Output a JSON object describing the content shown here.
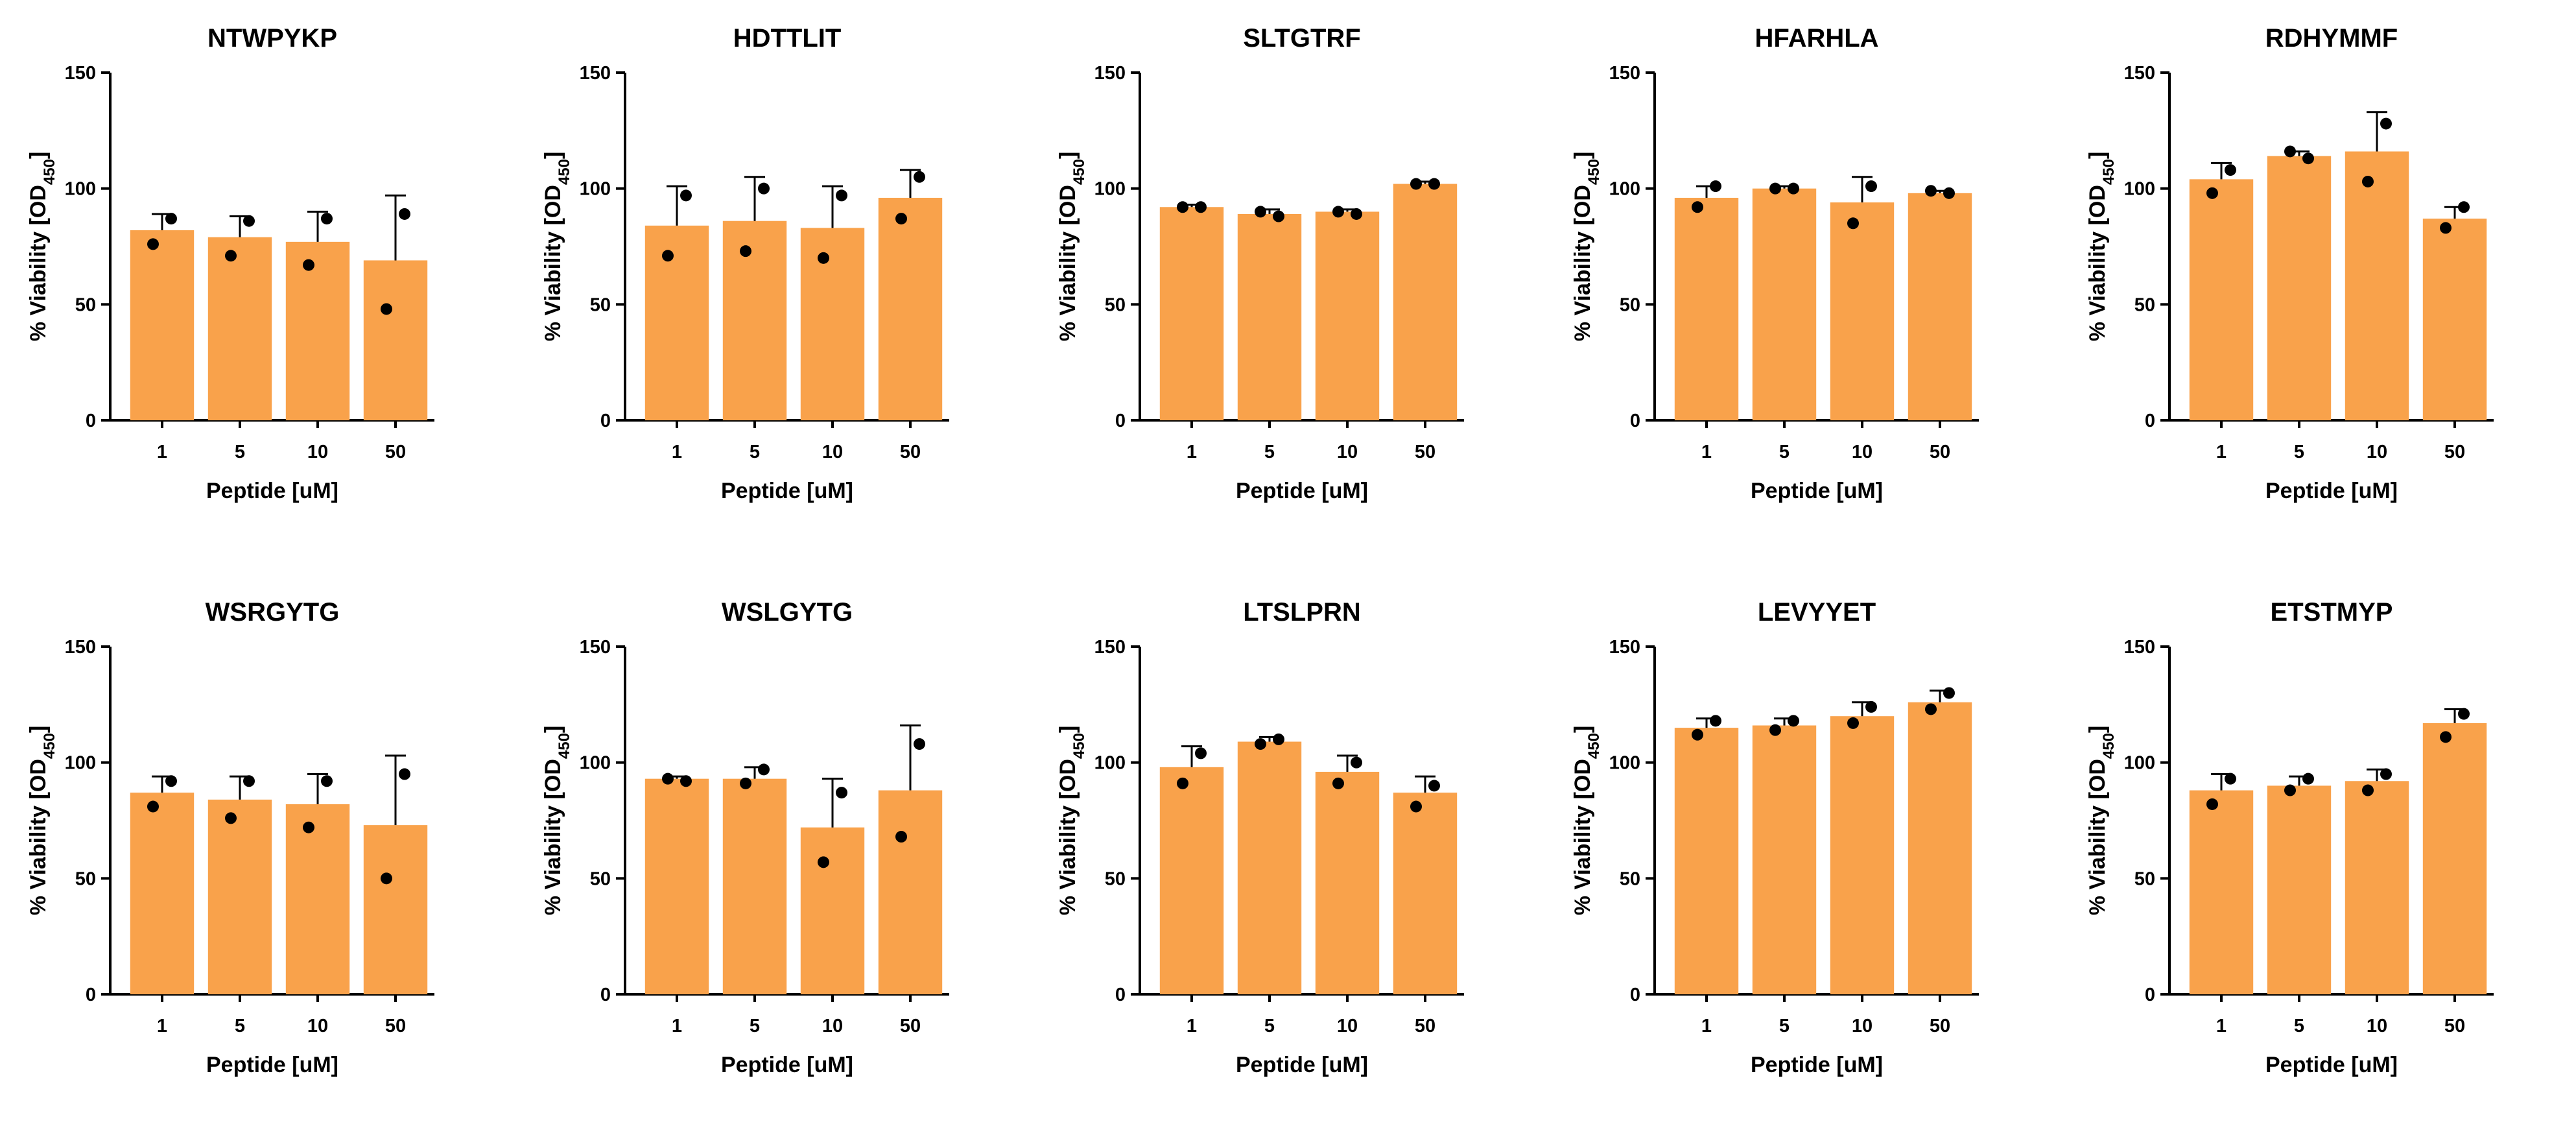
{
  "bar_color": "#F9A24B",
  "point_color": "#000000",
  "chart_data": [
    {
      "type": "bar",
      "title": "NTWPYKP",
      "xlabel": "Peptide [uM]",
      "ylabel_main": "% Viability [OD",
      "ylabel_sub": "450",
      "ylabel_end": "]",
      "ylim": [
        0,
        150
      ],
      "yticks": [
        "0",
        "50",
        "100",
        "150"
      ],
      "categories": [
        "1",
        "5",
        "10",
        "50"
      ],
      "values": [
        82,
        79,
        77,
        69
      ],
      "errors": [
        7,
        9,
        13,
        28
      ],
      "points": [
        [
          87,
          76
        ],
        [
          86,
          71
        ],
        [
          87,
          67
        ],
        [
          89,
          48
        ]
      ]
    },
    {
      "type": "bar",
      "title": "HDTTLIT",
      "xlabel": "Peptide [uM]",
      "ylabel_main": "% Viability [OD",
      "ylabel_sub": "450",
      "ylabel_end": "]",
      "ylim": [
        0,
        150
      ],
      "yticks": [
        "0",
        "50",
        "100",
        "150"
      ],
      "categories": [
        "1",
        "5",
        "10",
        "50"
      ],
      "values": [
        84,
        86,
        83,
        96
      ],
      "errors": [
        17,
        19,
        18,
        12
      ],
      "points": [
        [
          97,
          71
        ],
        [
          100,
          73
        ],
        [
          97,
          70
        ],
        [
          105,
          87
        ]
      ]
    },
    {
      "type": "bar",
      "title": "SLTGTRF",
      "xlabel": "Peptide [uM]",
      "ylabel_main": "% Viability [OD",
      "ylabel_sub": "450",
      "ylabel_end": "]",
      "ylim": [
        0,
        150
      ],
      "yticks": [
        "0",
        "50",
        "100",
        "150"
      ],
      "categories": [
        "1",
        "5",
        "10",
        "50"
      ],
      "values": [
        92,
        89,
        90,
        102
      ],
      "errors": [
        1,
        2,
        1,
        1
      ],
      "points": [
        [
          92,
          92
        ],
        [
          88,
          90
        ],
        [
          89,
          90
        ],
        [
          102,
          102
        ]
      ]
    },
    {
      "type": "bar",
      "title": "HFARHLA",
      "xlabel": "Peptide [uM]",
      "ylabel_main": "% Viability [OD",
      "ylabel_sub": "450",
      "ylabel_end": "]",
      "ylim": [
        0,
        150
      ],
      "yticks": [
        "0",
        "50",
        "100",
        "150"
      ],
      "categories": [
        "1",
        "5",
        "10",
        "50"
      ],
      "values": [
        96,
        100,
        94,
        98
      ],
      "errors": [
        5,
        1,
        11,
        1
      ],
      "points": [
        [
          101,
          92
        ],
        [
          100,
          100
        ],
        [
          101,
          85
        ],
        [
          98,
          99
        ]
      ]
    },
    {
      "type": "bar",
      "title": "RDHYMMF",
      "xlabel": "Peptide [uM]",
      "ylabel_main": "% Viability [OD",
      "ylabel_sub": "450",
      "ylabel_end": "]",
      "ylim": [
        0,
        150
      ],
      "yticks": [
        "0",
        "50",
        "100",
        "150"
      ],
      "categories": [
        "1",
        "5",
        "10",
        "50"
      ],
      "values": [
        104,
        114,
        116,
        87
      ],
      "errors": [
        7,
        2,
        17,
        5
      ],
      "points": [
        [
          108,
          98
        ],
        [
          113,
          116
        ],
        [
          128,
          103
        ],
        [
          92,
          83
        ]
      ]
    },
    {
      "type": "bar",
      "title": "WSRGYTG",
      "xlabel": "Peptide [uM]",
      "ylabel_main": "% Viability [OD",
      "ylabel_sub": "450",
      "ylabel_end": "]",
      "ylim": [
        0,
        150
      ],
      "yticks": [
        "0",
        "50",
        "100",
        "150"
      ],
      "categories": [
        "1",
        "5",
        "10",
        "50"
      ],
      "values": [
        87,
        84,
        82,
        73
      ],
      "errors": [
        7,
        10,
        13,
        30
      ],
      "points": [
        [
          92,
          81
        ],
        [
          92,
          76
        ],
        [
          92,
          72
        ],
        [
          95,
          50
        ]
      ]
    },
    {
      "type": "bar",
      "title": "WSLGYTG",
      "xlabel": "Peptide [uM]",
      "ylabel_main": "% Viability [OD",
      "ylabel_sub": "450",
      "ylabel_end": "]",
      "ylim": [
        0,
        150
      ],
      "yticks": [
        "0",
        "50",
        "100",
        "150"
      ],
      "categories": [
        "1",
        "5",
        "10",
        "50"
      ],
      "values": [
        93,
        93,
        72,
        88
      ],
      "errors": [
        1,
        5,
        21,
        28
      ],
      "points": [
        [
          92,
          93
        ],
        [
          97,
          91
        ],
        [
          87,
          57
        ],
        [
          108,
          68
        ]
      ]
    },
    {
      "type": "bar",
      "title": "LTSLPRN",
      "xlabel": "Peptide [uM]",
      "ylabel_main": "% Viability [OD",
      "ylabel_sub": "450",
      "ylabel_end": "]",
      "ylim": [
        0,
        150
      ],
      "yticks": [
        "0",
        "50",
        "100",
        "150"
      ],
      "categories": [
        "1",
        "5",
        "10",
        "50"
      ],
      "values": [
        98,
        109,
        96,
        87
      ],
      "errors": [
        9,
        2,
        7,
        7
      ],
      "points": [
        [
          104,
          91
        ],
        [
          110,
          108
        ],
        [
          100,
          91
        ],
        [
          90,
          81
        ]
      ]
    },
    {
      "type": "bar",
      "title": "LEVYYET",
      "xlabel": "Peptide [uM]",
      "ylabel_main": "% Viability [OD",
      "ylabel_sub": "450",
      "ylabel_end": "]",
      "ylim": [
        0,
        150
      ],
      "yticks": [
        "0",
        "50",
        "100",
        "150"
      ],
      "categories": [
        "1",
        "5",
        "10",
        "50"
      ],
      "values": [
        115,
        116,
        120,
        126
      ],
      "errors": [
        4,
        3,
        6,
        5
      ],
      "points": [
        [
          118,
          112
        ],
        [
          118,
          114
        ],
        [
          124,
          117
        ],
        [
          130,
          123
        ]
      ]
    },
    {
      "type": "bar",
      "title": "ETSTMYP",
      "xlabel": "Peptide [uM]",
      "ylabel_main": "% Viability [OD",
      "ylabel_sub": "450",
      "ylabel_end": "]",
      "ylim": [
        0,
        150
      ],
      "yticks": [
        "0",
        "50",
        "100",
        "150"
      ],
      "categories": [
        "1",
        "5",
        "10",
        "50"
      ],
      "values": [
        88,
        90,
        92,
        117
      ],
      "errors": [
        7,
        4,
        5,
        6
      ],
      "points": [
        [
          93,
          82
        ],
        [
          93,
          88
        ],
        [
          95,
          88
        ],
        [
          121,
          111
        ]
      ]
    }
  ]
}
